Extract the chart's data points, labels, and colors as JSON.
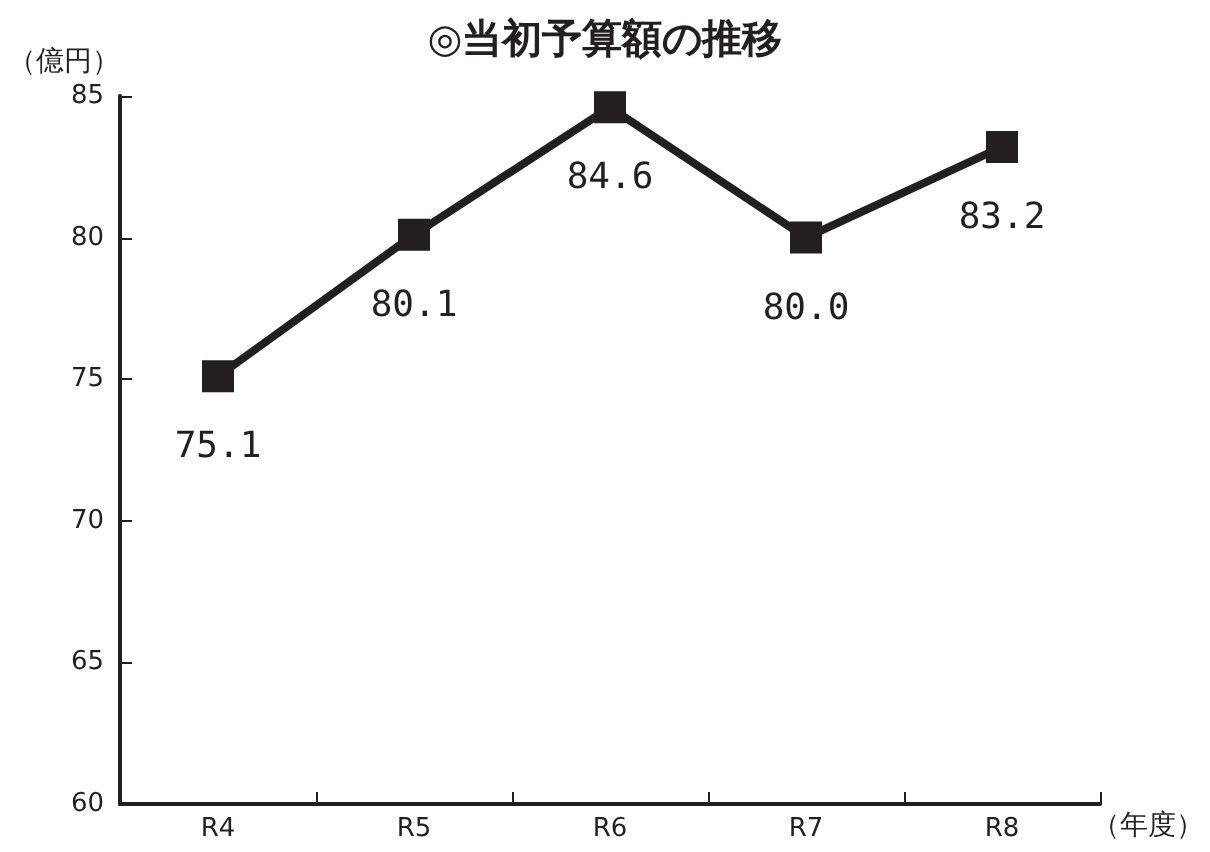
{
  "chart_data": {
    "type": "line",
    "title": "◎当初予算額の推移",
    "ylabel": "（億円）",
    "xlabel": "（年度）",
    "categories": [
      "R4",
      "R5",
      "R6",
      "R7",
      "R8"
    ],
    "series": [
      {
        "color": "#231f20",
        "values": [
          75.1,
          80.1,
          84.6,
          80.0,
          83.2
        ],
        "value_labels": [
          "75.1",
          "80.1",
          "84.6",
          "80.0",
          "83.2"
        ]
      }
    ],
    "ylim": [
      60,
      85
    ],
    "yticks": [
      60,
      65,
      70,
      75,
      80,
      85
    ],
    "marker": "square",
    "line_style": "solid"
  }
}
